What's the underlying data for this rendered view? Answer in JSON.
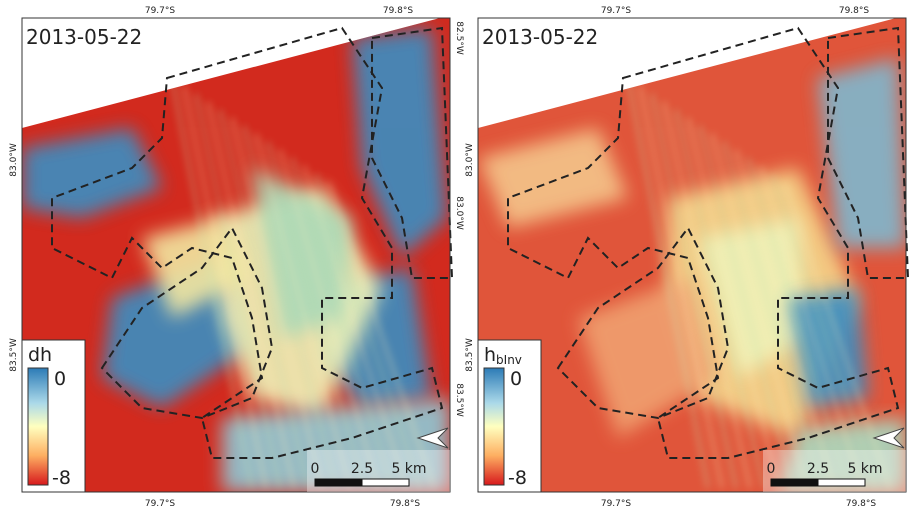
{
  "panels": [
    {
      "date": "2013-05-22",
      "colorbar": {
        "label": "dh",
        "max": "0",
        "min": "-8"
      },
      "scale_bar": [
        "0",
        "2.5",
        "5 km"
      ],
      "top_axis": [
        "79.7°S",
        "79.8°S"
      ],
      "bottom_axis": [
        "79.7°S",
        "79.8°S"
      ],
      "left_axis": [
        "83.0°W",
        "83.5°W"
      ],
      "right_axis": [
        "82.5°W",
        "83.0°W",
        "83.5°W"
      ]
    },
    {
      "date": "2013-05-22",
      "colorbar": {
        "label": "h",
        "label_subscript": "bInv",
        "max": "0",
        "min": "-8"
      },
      "scale_bar": [
        "0",
        "2.5",
        "5 km"
      ],
      "top_axis": [
        "79.7°S",
        "79.8°S"
      ],
      "bottom_axis": [
        "79.7°S",
        "79.8°S"
      ],
      "left_axis": [
        "83.0°W",
        "83.5°W"
      ]
    }
  ]
}
